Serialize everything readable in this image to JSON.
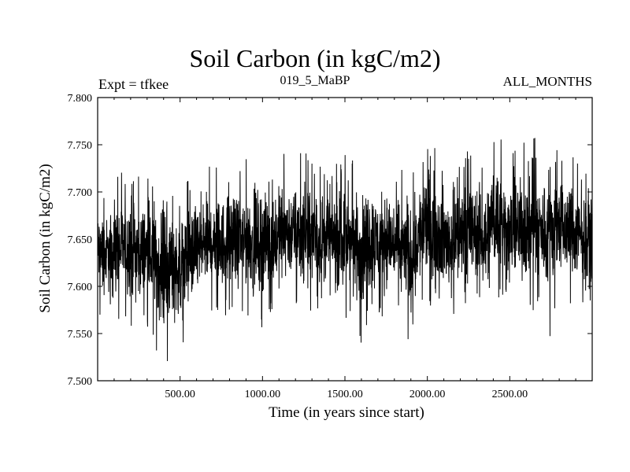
{
  "chart_data": {
    "type": "line",
    "title": "Soil Carbon (in kgC/m2)",
    "subtitle": "019_5_MaBP",
    "expt_label": "Expt = tfkee",
    "months_label": "ALL_MONTHS",
    "xlabel": "Time (in years since start)",
    "ylabel": "Soil Carbon (in kgC/m2)",
    "xlim": [
      0,
      3000
    ],
    "ylim": [
      7.5,
      7.8
    ],
    "x_ticks": [
      500,
      1000,
      1500,
      2000,
      2500
    ],
    "x_tick_labels": [
      "500.00",
      "1000.00",
      "1500.00",
      "2000.00",
      "2500.00"
    ],
    "y_ticks": [
      7.5,
      7.55,
      7.6,
      7.65,
      7.7,
      7.75,
      7.8
    ],
    "y_tick_labels": [
      "7.500",
      "7.550",
      "7.600",
      "7.650",
      "7.700",
      "7.750",
      "7.800"
    ],
    "grid": false,
    "series_color": "#000000",
    "series": [
      {
        "x": [
          0,
          50,
          100,
          150,
          200,
          250,
          300,
          350,
          400,
          450,
          500,
          550,
          600,
          650,
          700,
          750,
          800,
          850,
          900,
          950,
          1000,
          1050,
          1100,
          1150,
          1200,
          1250,
          1300,
          1350,
          1400,
          1450,
          1500,
          1550,
          1600,
          1650,
          1700,
          1750,
          1800,
          1850,
          1900,
          1950,
          2000,
          2050,
          2100,
          2150,
          2200,
          2250,
          2300,
          2350,
          2400,
          2450,
          2500,
          2550,
          2600,
          2650,
          2700,
          2750,
          2800,
          2850,
          2900,
          2950,
          3000
        ],
        "y": [
          7.64,
          7.635,
          7.64,
          7.64,
          7.645,
          7.635,
          7.64,
          7.625,
          7.615,
          7.625,
          7.62,
          7.63,
          7.64,
          7.645,
          7.65,
          7.645,
          7.65,
          7.645,
          7.65,
          7.645,
          7.65,
          7.645,
          7.655,
          7.66,
          7.655,
          7.655,
          7.65,
          7.65,
          7.655,
          7.645,
          7.65,
          7.645,
          7.64,
          7.65,
          7.645,
          7.65,
          7.645,
          7.64,
          7.63,
          7.655,
          7.665,
          7.66,
          7.65,
          7.645,
          7.655,
          7.66,
          7.655,
          7.65,
          7.675,
          7.67,
          7.655,
          7.66,
          7.66,
          7.66,
          7.66,
          7.66,
          7.665,
          7.66,
          7.655,
          7.65,
          7.655
        ],
        "y_min": [
          7.57,
          7.56,
          7.555,
          7.56,
          7.55,
          7.545,
          7.535,
          7.525,
          7.515,
          7.525,
          7.53,
          7.535,
          7.555,
          7.56,
          7.57,
          7.565,
          7.565,
          7.57,
          7.565,
          7.565,
          7.555,
          7.565,
          7.57,
          7.575,
          7.575,
          7.57,
          7.565,
          7.565,
          7.57,
          7.56,
          7.565,
          7.555,
          7.535,
          7.56,
          7.56,
          7.57,
          7.56,
          7.555,
          7.53,
          7.56,
          7.57,
          7.575,
          7.565,
          7.545,
          7.575,
          7.58,
          7.575,
          7.565,
          7.585,
          7.575,
          7.57,
          7.57,
          7.575,
          7.57,
          7.555,
          7.54,
          7.575,
          7.58,
          7.575,
          7.57,
          7.575
        ],
        "y_max": [
          7.705,
          7.7,
          7.71,
          7.725,
          7.73,
          7.725,
          7.715,
          7.71,
          7.7,
          7.705,
          7.705,
          7.715,
          7.725,
          7.73,
          7.73,
          7.725,
          7.735,
          7.73,
          7.74,
          7.735,
          7.74,
          7.73,
          7.745,
          7.745,
          7.74,
          7.745,
          7.735,
          7.74,
          7.745,
          7.735,
          7.74,
          7.735,
          7.73,
          7.745,
          7.735,
          7.74,
          7.735,
          7.725,
          7.72,
          7.74,
          7.775,
          7.75,
          7.735,
          7.735,
          7.745,
          7.75,
          7.745,
          7.74,
          7.78,
          7.755,
          7.74,
          7.75,
          7.755,
          7.765,
          7.745,
          7.745,
          7.765,
          7.745,
          7.735,
          7.725,
          7.72
        ]
      }
    ]
  }
}
